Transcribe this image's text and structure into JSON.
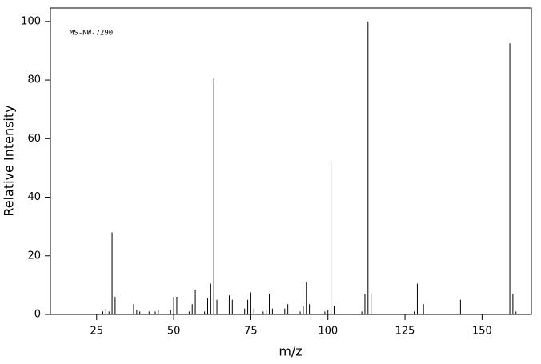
{
  "chart_data": {
    "type": "stick",
    "label": "MS-NW-7290",
    "x_label": "m/z",
    "y_label": "Relative Intensity",
    "color": "#000000",
    "x": [
      27,
      28,
      29,
      30,
      31,
      37,
      38,
      39,
      42,
      44,
      45,
      49,
      50,
      51,
      55,
      56,
      57,
      60,
      61,
      62,
      63,
      64,
      68,
      69,
      73,
      74,
      75,
      76,
      79,
      80,
      81,
      82,
      86,
      87,
      91,
      92,
      93,
      94,
      99,
      100,
      101,
      102,
      111,
      112,
      113,
      114,
      128,
      129,
      131,
      143,
      159,
      160,
      161
    ],
    "values": [
      1,
      2,
      1,
      28,
      6,
      3.5,
      1.5,
      1,
      1,
      1,
      1.5,
      1.5,
      6,
      6,
      1,
      3.5,
      8.5,
      1,
      5.5,
      10.5,
      80.5,
      5,
      6.5,
      5,
      2,
      5,
      7.5,
      2,
      1,
      1.5,
      7,
      2,
      2,
      3.5,
      1,
      3,
      11,
      3.5,
      1,
      1.5,
      52,
      3,
      1,
      7,
      100,
      7,
      1,
      10.5,
      3.5,
      5,
      92.5,
      7,
      1
    ],
    "xlim": [
      10,
      166
    ],
    "ylim": [
      0,
      104.6
    ],
    "xticks": [
      25,
      50,
      75,
      100,
      125,
      150
    ],
    "yticks": [
      0,
      20,
      40,
      60,
      80,
      100
    ]
  }
}
